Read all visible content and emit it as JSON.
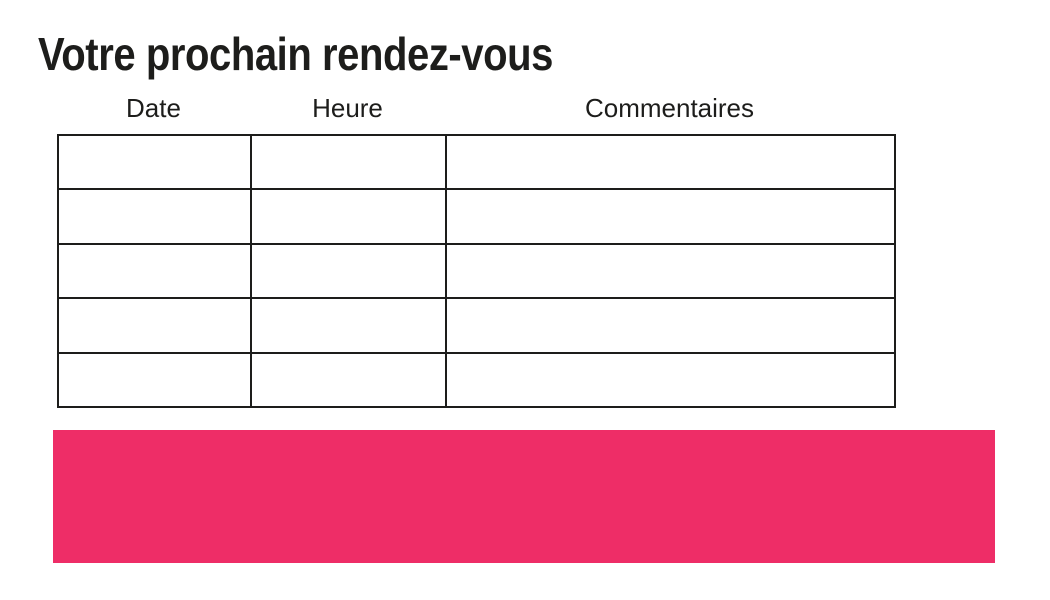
{
  "page": {
    "title": "Votre prochain rendez-vous",
    "background": "#ffffff"
  },
  "table": {
    "columns": [
      "Date",
      "Heure",
      "Commentaires"
    ],
    "rows": [
      [
        "",
        "",
        ""
      ],
      [
        "",
        "",
        ""
      ],
      [
        "",
        "",
        ""
      ],
      [
        "",
        "",
        ""
      ],
      [
        "",
        "",
        ""
      ]
    ]
  },
  "banner": {
    "text": ""
  },
  "colors": {
    "accent_pink": "#ee2d67",
    "text": "#1d1d1b",
    "table_border": "#1d1d1b"
  }
}
